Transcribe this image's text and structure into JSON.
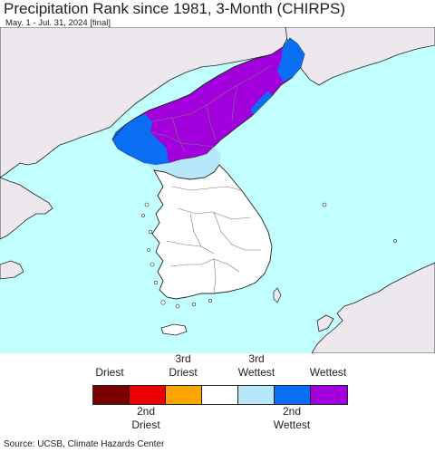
{
  "header": {
    "title": "Precipitation Rank since 1981, 3-Month (CHIRPS)",
    "subtitle": "May. 1 - Jul. 31, 2024 [final]"
  },
  "colors": {
    "sea": "#c2ffff",
    "land_foreign": "#ede8ee",
    "neutral": "#ffffff",
    "coast": "#222222"
  },
  "legend": {
    "top_labels": [
      "Driest",
      "3rd\nDriest",
      "3rd\nWettest",
      "Wettest"
    ],
    "bottom_labels": [
      "2nd\nDriest",
      "2nd\nWettest"
    ],
    "swatches": [
      {
        "name": "driest",
        "color": "#7a0000"
      },
      {
        "name": "2nd-driest",
        "color": "#ee0000"
      },
      {
        "name": "3rd-driest",
        "color": "#ffa500"
      },
      {
        "name": "normal",
        "color": "#ffffff"
      },
      {
        "name": "3rd-wettest",
        "color": "#b8e6fb"
      },
      {
        "name": "2nd-wettest",
        "color": "#0a6ef5"
      },
      {
        "name": "wettest",
        "color": "#a300de"
      }
    ]
  },
  "footer": {
    "source": "Source: UCSB, Climate Hazards Center"
  }
}
